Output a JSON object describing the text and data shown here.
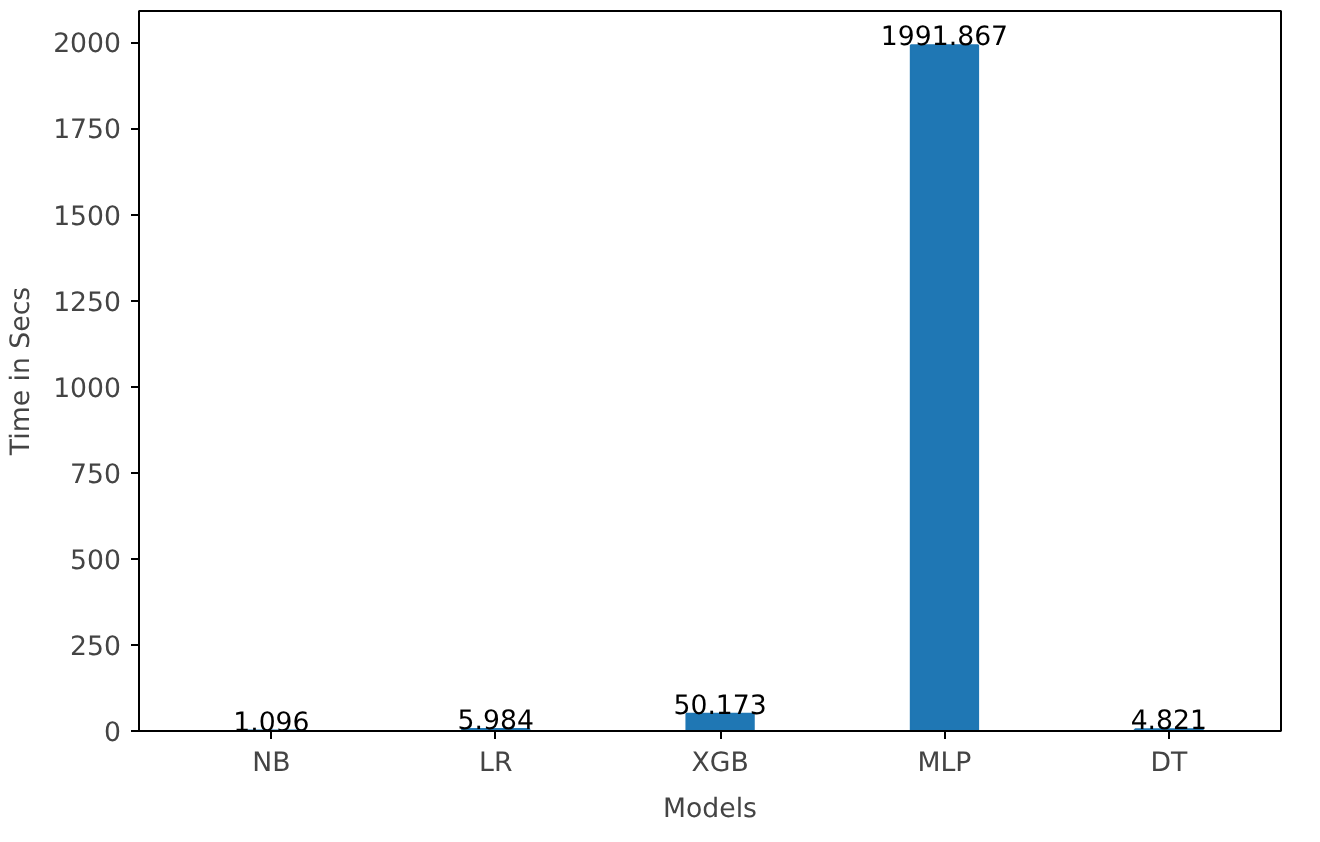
{
  "chart_data": {
    "type": "bar",
    "xlabel": "Models",
    "ylabel": "Time in Secs",
    "categories": [
      "NB",
      "LR",
      "XGB",
      "MLP",
      "DT"
    ],
    "values": [
      1.096,
      5.984,
      50.173,
      1991.867,
      4.821
    ],
    "color": "#1f77b4",
    "data_labels": true,
    "grid": false,
    "ylim": [
      0,
      2091
    ],
    "yticks": [
      0,
      250,
      500,
      750,
      1000,
      1250,
      1500,
      1750,
      2000
    ]
  }
}
